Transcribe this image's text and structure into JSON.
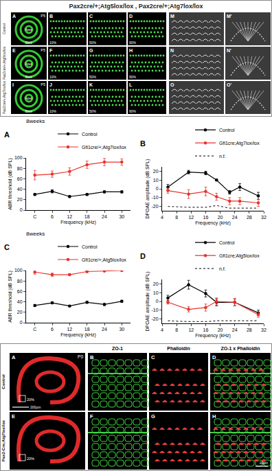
{
  "top_figure": {
    "title": "Pax2cre/+;Atg5lox/lox , Pax2cre/+;Atg7lox/lox",
    "stage": "P5",
    "cochlea_labels": [
      "Apex",
      "Base"
    ],
    "positions": [
      "10%",
      "50%",
      "90%"
    ],
    "rows": [
      {
        "label": "Control",
        "panels": [
          "A",
          "B",
          "C",
          "D",
          "M",
          "M'"
        ]
      },
      {
        "label": "Pax2cre/+;Atg5lox/lox",
        "panels": [
          "E",
          "F",
          "G",
          "H",
          "N",
          "N'"
        ]
      },
      {
        "label": "Pax2cre/+;Atg7lox/lox",
        "panels": [
          "I",
          "J",
          "K",
          "L",
          "O",
          "O'"
        ]
      }
    ]
  },
  "chart_data": [
    {
      "type": "line",
      "panel": "A",
      "title": "8weeks",
      "x_label": "Frequency (kHz)",
      "y_label": "ABR threshold (dB SPL)",
      "categories": [
        "C",
        "6",
        "12",
        "18",
        "24",
        "30"
      ],
      "ylim": [
        0,
        100
      ],
      "yticks": [
        0,
        20,
        40,
        60,
        80,
        100
      ],
      "grid": false,
      "legend": "top",
      "series": [
        {
          "name": "Control",
          "color": "#000000",
          "marker": "circle",
          "line_style": "solid",
          "values": [
            30,
            36,
            26,
            30,
            35,
            35
          ],
          "errors": [
            2,
            3,
            2,
            2,
            2,
            2
          ]
        },
        {
          "name": "Gfi1cre/+;Atg7lox/lox",
          "color": "#e8322a",
          "marker": "circle",
          "line_style": "solid",
          "values": [
            67,
            69,
            74,
            87,
            92,
            92
          ],
          "errors": [
            9,
            6,
            7,
            7,
            7,
            6
          ]
        }
      ]
    },
    {
      "type": "line",
      "panel": "B",
      "x_label": "Frequency (kHz)",
      "y_label": "DPOAE amplitude (dB SPL)",
      "x": [
        5.6,
        11.3,
        16,
        19,
        22.6,
        25.4,
        30.5
      ],
      "xlim": [
        4,
        32
      ],
      "xticks": [
        4,
        8,
        12,
        16,
        20,
        24,
        28,
        32
      ],
      "ylim": [
        -25,
        25
      ],
      "yticks": [
        -20,
        -10,
        0,
        10,
        20
      ],
      "grid": false,
      "legend": "top",
      "series": [
        {
          "name": "Control",
          "color": "#000000",
          "marker": "circle",
          "line_style": "solid",
          "values": [
            2,
            19,
            18,
            10,
            -4,
            2,
            -8
          ],
          "errors": [
            3,
            2,
            2,
            1,
            2,
            4,
            4
          ]
        },
        {
          "name": "Gfi1cre;Atg7lox/lox",
          "color": "#e8322a",
          "marker": "circle",
          "line_style": "solid",
          "values": [
            -2,
            -6,
            -3,
            -9,
            -14,
            -14,
            -16
          ],
          "errors": [
            3,
            5,
            5,
            4,
            4,
            4,
            4
          ]
        },
        {
          "name": "n.f.",
          "color": "#333333",
          "marker": "none",
          "line_style": "dotted",
          "values": [
            -20,
            -21,
            -21,
            -19,
            -22,
            -22,
            -22
          ]
        }
      ]
    },
    {
      "type": "line",
      "panel": "C",
      "title": "8weeks",
      "x_label": "Frequency (kHz)",
      "y_label": "ABR threshold (dB SPL)",
      "categories": [
        "C",
        "6",
        "12",
        "18",
        "24",
        "30"
      ],
      "ylim": [
        0,
        100
      ],
      "yticks": [
        0,
        20,
        40,
        60,
        80,
        100
      ],
      "grid": false,
      "legend": "top",
      "series": [
        {
          "name": "Control",
          "color": "#000000",
          "marker": "circle",
          "line_style": "solid",
          "values": [
            33,
            38,
            32,
            39,
            35,
            41
          ],
          "errors": [
            2,
            2,
            1,
            2,
            2,
            2
          ]
        },
        {
          "name": "Gfi1cre/+;Atg5lox/lox",
          "color": "#e8322a",
          "marker": "circle",
          "line_style": "solid",
          "values": [
            97,
            92,
            92,
            98,
            99,
            100
          ],
          "errors": [
            4,
            3,
            2,
            2,
            1,
            1
          ]
        }
      ]
    },
    {
      "type": "line",
      "panel": "D",
      "x_label": "Frequency (kHz)",
      "y_label": "DPOAE amplitude (dB SPL)",
      "x": [
        5.6,
        11.3,
        16,
        19,
        24,
        30.5
      ],
      "xlim": [
        4,
        32
      ],
      "xticks": [
        4,
        8,
        12,
        16,
        20,
        24,
        28,
        32
      ],
      "ylim": [
        -25,
        25
      ],
      "yticks": [
        -20,
        -10,
        0,
        10,
        20
      ],
      "grid": false,
      "legend": "top",
      "series": [
        {
          "name": "Control",
          "color": "#000000",
          "marker": "circle",
          "line_style": "solid",
          "values": [
            4,
            19,
            9,
            -1,
            -1,
            -13
          ],
          "errors": [
            3,
            5,
            4,
            4,
            4,
            3
          ]
        },
        {
          "name": "Gfi1cre;Atg5lox/lox",
          "color": "#e8322a",
          "marker": "circle",
          "line_style": "solid",
          "values": [
            -1,
            -9,
            -7,
            0,
            -1,
            -15
          ],
          "errors": [
            2,
            3,
            4,
            4,
            4,
            3
          ]
        },
        {
          "name": "n.f.",
          "color": "#333333",
          "marker": "none",
          "line_style": "dotted",
          "values": [
            -22,
            -23,
            -23,
            -22,
            -22,
            -22
          ]
        }
      ]
    }
  ],
  "bottom_figure": {
    "stage": "P0",
    "position": "20%",
    "columns": [
      "ZO-1",
      "Phalloidin",
      "ZO-1 x Phalloidin"
    ],
    "scale_bars": [
      "200µm",
      "10µm"
    ],
    "rows": [
      {
        "label": "Control",
        "panels": [
          "A",
          "B",
          "C",
          "D"
        ]
      },
      {
        "label": "Pax2-Cre;Atg7lox/lox",
        "panels": [
          "E",
          "F",
          "G",
          "H"
        ]
      }
    ]
  }
}
